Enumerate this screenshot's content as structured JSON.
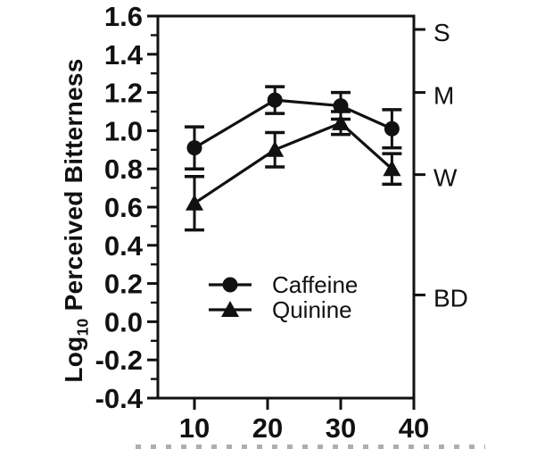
{
  "chart_data": {
    "type": "line",
    "title": "",
    "xlabel": "",
    "ylabel": "Log10 Perceived Bitterness",
    "ylabel_parts": {
      "main": "Log",
      "sub": "10",
      "rest": " Perceived Bitterness"
    },
    "xlim": [
      5,
      40
    ],
    "ylim": [
      -0.4,
      1.6
    ],
    "grid": false,
    "x_ticks": [
      10,
      20,
      30,
      40
    ],
    "y_ticks_major": [
      1.6,
      1.4,
      1.2,
      1.0,
      0.8,
      0.6,
      0.4,
      0.2,
      0.0,
      -0.2,
      -0.4
    ],
    "y_ticks_minor": [
      1.5,
      1.3,
      1.1,
      0.9,
      0.7,
      0.5,
      0.3,
      0.1,
      -0.1,
      -0.3
    ],
    "x": [
      10,
      21,
      30,
      37
    ],
    "series": [
      {
        "name": "Caffeine",
        "marker": "circle",
        "values": [
          0.91,
          1.16,
          1.13,
          1.01
        ],
        "errors": [
          0.11,
          0.07,
          0.07,
          0.1
        ]
      },
      {
        "name": "Quinine",
        "marker": "triangle",
        "values": [
          0.62,
          0.9,
          1.04,
          0.8
        ],
        "errors": [
          0.14,
          0.09,
          0.06,
          0.08
        ]
      }
    ],
    "right_axis_ticks": [
      {
        "label": "S",
        "value": 1.53
      },
      {
        "label": "M",
        "value": 1.2
      },
      {
        "label": "W",
        "value": 0.77
      },
      {
        "label": "BD",
        "value": 0.14
      }
    ],
    "legend": {
      "position": "inside-lower-left",
      "items": [
        "Caffeine",
        "Quinine"
      ]
    },
    "colors": {
      "foreground": "#111111",
      "background": "#ffffff"
    }
  }
}
